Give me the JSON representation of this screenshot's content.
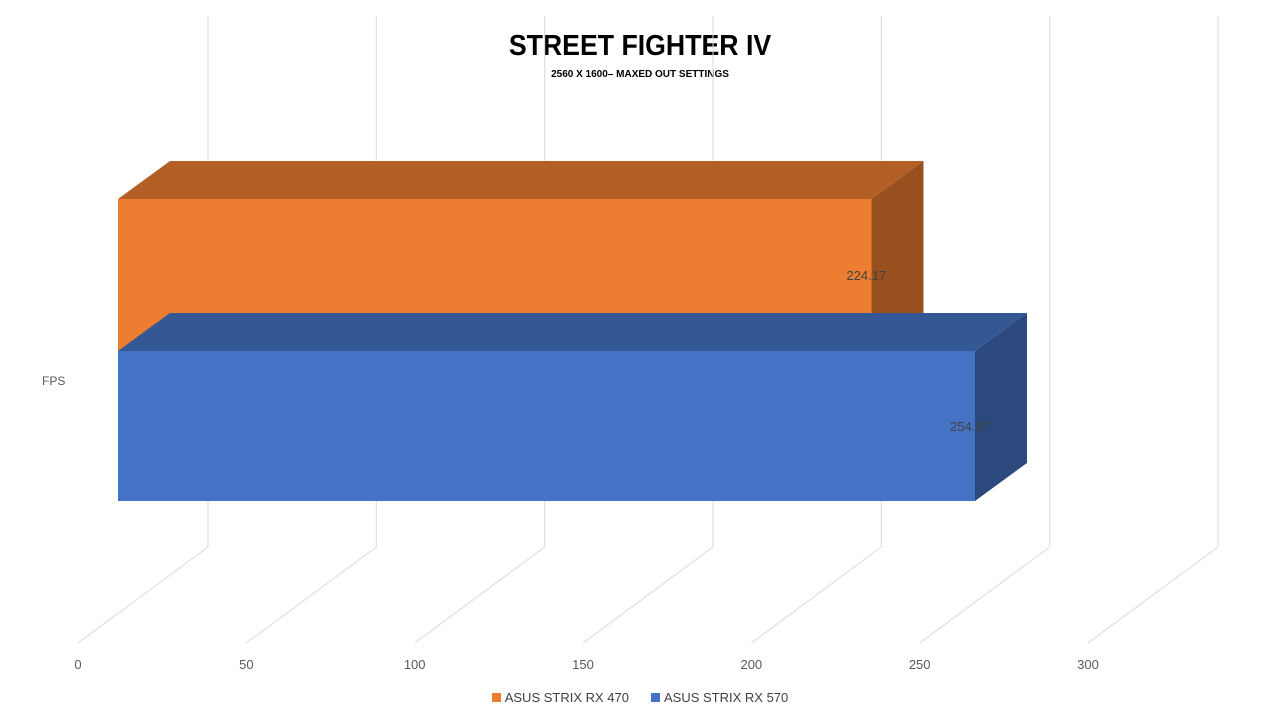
{
  "chart_data": {
    "type": "bar",
    "orientation": "horizontal",
    "title": "STREET FIGHTER IV",
    "subtitle": "2560 X 1600– MAXED OUT SETTINGS",
    "categories": [
      "FPS"
    ],
    "series": [
      {
        "name": "ASUS STRIX RX 470",
        "values": [
          224.17
        ],
        "label": "224.17",
        "color": "#ED7D31"
      },
      {
        "name": "ASUS STRIX RX 570",
        "values": [
          254.97
        ],
        "label": "254.97",
        "color": "#4472C4"
      }
    ],
    "xlim": [
      0,
      300
    ],
    "x_ticks": [
      "0",
      "50",
      "100",
      "150",
      "200",
      "250",
      "300"
    ],
    "grid": true,
    "three_d": true,
    "legend_position": "bottom"
  }
}
